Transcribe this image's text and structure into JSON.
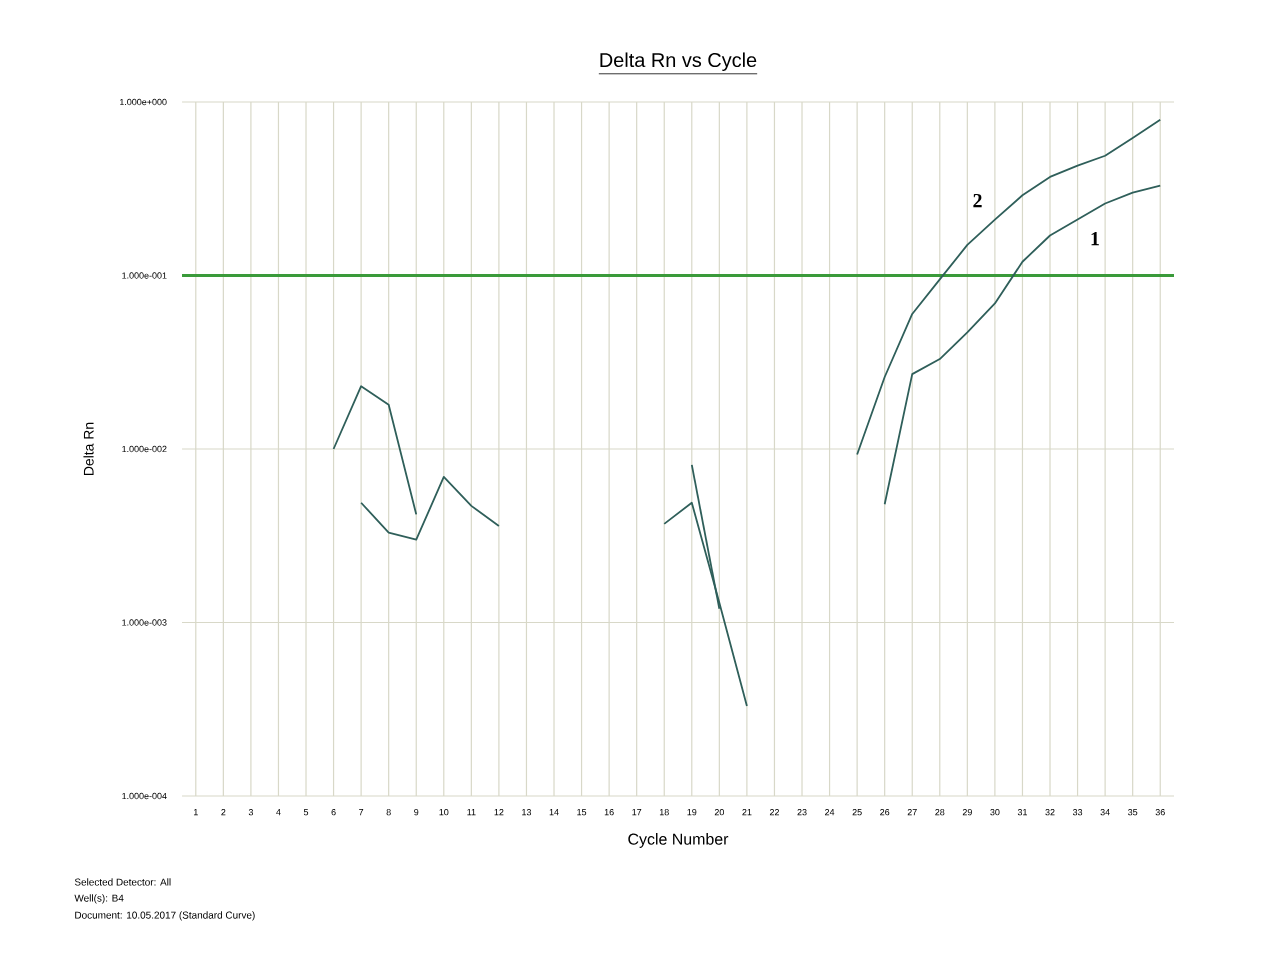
{
  "chart_data": {
    "type": "line",
    "title": "Delta Rn vs Cycle",
    "xlabel": "Cycle Number",
    "ylabel": "Delta Rn",
    "log": "y",
    "grid": true,
    "marker": "none",
    "xlim": [
      0.5,
      36.5
    ],
    "xticks": [
      1,
      2,
      3,
      4,
      5,
      6,
      7,
      8,
      9,
      10,
      11,
      12,
      13,
      14,
      15,
      16,
      17,
      18,
      19,
      20,
      21,
      22,
      23,
      24,
      25,
      26,
      27,
      28,
      29,
      30,
      31,
      32,
      33,
      34,
      35,
      36
    ],
    "ylim": [
      0.0001,
      1
    ],
    "yticks": [
      {
        "value": 0.0001,
        "label": "1.000e-004"
      },
      {
        "value": 0.001,
        "label": "1.000e-003"
      },
      {
        "value": 0.01,
        "label": "1.000e-002"
      },
      {
        "value": 0.1,
        "label": "1.000e-001"
      },
      {
        "value": 1,
        "label": "1.000e+000"
      }
    ],
    "series": [
      {
        "color": "#2f5f5a",
        "x": [
          6,
          7,
          8,
          9
        ],
        "values": [
          0.01,
          0.023,
          0.018,
          0.0042
        ]
      },
      {
        "color": "#2f5f5a",
        "x": [
          7,
          8,
          9,
          10,
          11,
          12
        ],
        "values": [
          0.0049,
          0.0033,
          0.003,
          0.0069,
          0.0047,
          0.0036
        ]
      },
      {
        "color": "#2f5f5a",
        "x": [
          18,
          19,
          20,
          21
        ],
        "values": [
          0.0037,
          0.0049,
          0.0013,
          0.00033
        ]
      },
      {
        "color": "#2f5f5a",
        "x": [
          19,
          20
        ],
        "values": [
          0.0081,
          0.0012
        ]
      },
      {
        "name": "2",
        "color": "#2f5f5a",
        "x": [
          25,
          26,
          27,
          28,
          29,
          30,
          31,
          32,
          33,
          34,
          35,
          36
        ],
        "values": [
          0.0093,
          0.026,
          0.06,
          0.095,
          0.15,
          0.21,
          0.29,
          0.37,
          0.43,
          0.49,
          0.62,
          0.79
        ]
      },
      {
        "name": "1",
        "color": "#2f5f5a",
        "x": [
          26,
          27,
          28,
          29,
          30,
          31,
          32,
          33,
          34,
          35,
          36
        ],
        "values": [
          0.0048,
          0.027,
          0.033,
          0.047,
          0.069,
          0.12,
          0.17,
          0.21,
          0.26,
          0.3,
          0.33
        ]
      }
    ],
    "ref_lines": [
      {
        "axis": "y",
        "value": 0.1,
        "color": "#3a9a3a"
      }
    ],
    "annotations": [
      "Selected Detector: All",
      "Well(s): B4",
      "Document: 10.05.2017 (Standard Curve)"
    ]
  }
}
